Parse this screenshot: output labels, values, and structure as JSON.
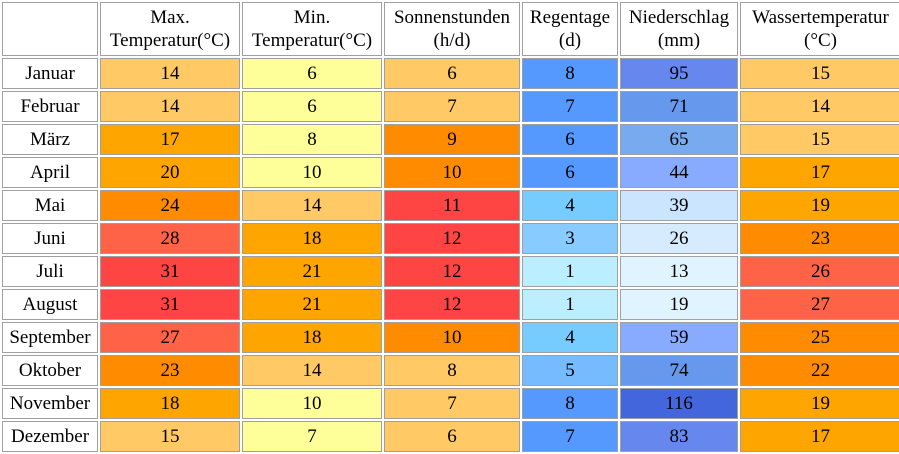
{
  "columns": [
    {
      "line1": "Max.",
      "line2": "Temperatur(°C)"
    },
    {
      "line1": "Min.",
      "line2": "Temperatur(°C)"
    },
    {
      "line1": "Sonnenstunden",
      "line2": "(h/d)"
    },
    {
      "line1": "Regentage",
      "line2": "(d)"
    },
    {
      "line1": "Niederschlag",
      "line2": "(mm)"
    },
    {
      "line1": "Wassertemperatur",
      "line2": "(°C)"
    }
  ],
  "rows": [
    {
      "month": "Januar",
      "values": [
        14,
        6,
        6,
        8,
        95,
        15
      ],
      "colors": [
        "#ffc966",
        "#ffff99",
        "#ffc966",
        "#5599ff",
        "#6688ee",
        "#ffc966"
      ]
    },
    {
      "month": "Februar",
      "values": [
        14,
        6,
        7,
        7,
        71,
        14
      ],
      "colors": [
        "#ffc966",
        "#ffff99",
        "#ffc966",
        "#5599ff",
        "#6699ee",
        "#ffc966"
      ]
    },
    {
      "month": "März",
      "values": [
        17,
        8,
        9,
        6,
        65,
        15
      ],
      "colors": [
        "#ffa500",
        "#ffff99",
        "#ff8c00",
        "#5599ff",
        "#77aaee",
        "#ffc966"
      ]
    },
    {
      "month": "April",
      "values": [
        20,
        10,
        10,
        6,
        44,
        17
      ],
      "colors": [
        "#ffa500",
        "#ffff99",
        "#ff8c00",
        "#5599ff",
        "#88aaff",
        "#ffa500"
      ]
    },
    {
      "month": "Mai",
      "values": [
        24,
        14,
        11,
        4,
        39,
        19
      ],
      "colors": [
        "#ff8c00",
        "#ffc966",
        "#ff4444",
        "#77ccff",
        "#cce5ff",
        "#ffa500"
      ]
    },
    {
      "month": "Juni",
      "values": [
        28,
        18,
        12,
        3,
        26,
        23
      ],
      "colors": [
        "#ff6347",
        "#ffa500",
        "#ff4444",
        "#88ccff",
        "#d7ebff",
        "#ff8c00"
      ]
    },
    {
      "month": "Juli",
      "values": [
        31,
        21,
        12,
        1,
        13,
        26
      ],
      "colors": [
        "#ff4444",
        "#ffa500",
        "#ff4444",
        "#bbeeff",
        "#e0f4ff",
        "#ff6347"
      ]
    },
    {
      "month": "August",
      "values": [
        31,
        21,
        12,
        1,
        19,
        27
      ],
      "colors": [
        "#ff4444",
        "#ffa500",
        "#ff4444",
        "#bbeeff",
        "#e0f4ff",
        "#ff6347"
      ]
    },
    {
      "month": "September",
      "values": [
        27,
        18,
        10,
        4,
        59,
        25
      ],
      "colors": [
        "#ff6347",
        "#ffa500",
        "#ff8c00",
        "#77ccff",
        "#88aaff",
        "#ff8c00"
      ]
    },
    {
      "month": "Oktober",
      "values": [
        23,
        14,
        8,
        5,
        74,
        22
      ],
      "colors": [
        "#ff8c00",
        "#ffc966",
        "#ffc966",
        "#77bbff",
        "#6699ee",
        "#ff8c00"
      ]
    },
    {
      "month": "November",
      "values": [
        18,
        10,
        7,
        8,
        116,
        19
      ],
      "colors": [
        "#ffa500",
        "#ffff99",
        "#ffc966",
        "#5599ff",
        "#4466dd",
        "#ffa500"
      ]
    },
    {
      "month": "Dezember",
      "values": [
        15,
        7,
        6,
        7,
        83,
        17
      ],
      "colors": [
        "#ffc966",
        "#ffff99",
        "#ffc966",
        "#5599ff",
        "#6688ee",
        "#ffa500"
      ]
    }
  ]
}
